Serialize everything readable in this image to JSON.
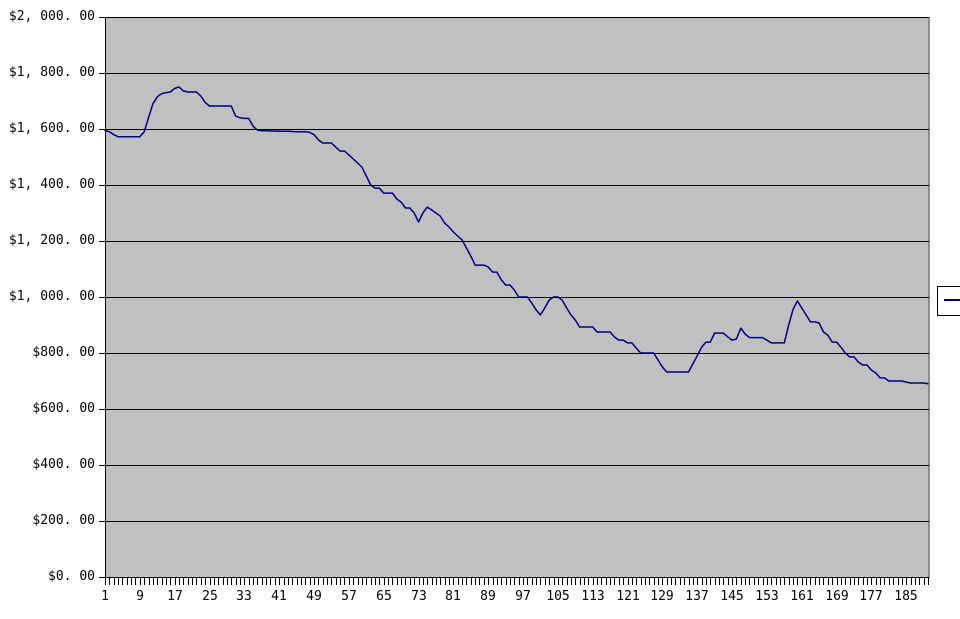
{
  "chart_data": {
    "type": "line",
    "title": "",
    "xlabel": "",
    "ylabel": "",
    "ylim": [
      0,
      2000
    ],
    "y_gridline_interval": 200,
    "y_tick_labels_top_to_bottom": [
      "$2, 000. 00",
      "$1, 800. 00",
      "$1, 600. 00",
      "$1, 400. 00",
      "$1, 200. 00",
      "$1, 000. 00",
      "$800. 00",
      "$600. 00",
      "$400. 00",
      "$200. 00",
      "$0. 00"
    ],
    "x_tick_labels": [
      1,
      9,
      17,
      25,
      33,
      41,
      49,
      57,
      65,
      73,
      81,
      89,
      97,
      105,
      113,
      121,
      129,
      137,
      145,
      153,
      161,
      169,
      177,
      185
    ],
    "n_points": 190,
    "grid": "horizontal",
    "legend_position": "right",
    "series": [
      {
        "name": "",
        "color": "#000080",
        "values": [
          1595,
          1590,
          1580,
          1572,
          1572,
          1572,
          1572,
          1572,
          1572,
          1590,
          1640,
          1690,
          1715,
          1726,
          1730,
          1732,
          1745,
          1750,
          1736,
          1732,
          1732,
          1732,
          1718,
          1695,
          1682,
          1682,
          1682,
          1682,
          1682,
          1682,
          1646,
          1640,
          1638,
          1638,
          1610,
          1596,
          1594,
          1594,
          1593,
          1593,
          1592,
          1592,
          1592,
          1591,
          1590,
          1590,
          1590,
          1588,
          1580,
          1561,
          1550,
          1550,
          1550,
          1535,
          1521,
          1521,
          1507,
          1493,
          1479,
          1464,
          1432,
          1400,
          1389,
          1389,
          1371,
          1371,
          1371,
          1350,
          1339,
          1318,
          1318,
          1300,
          1268,
          1300,
          1321,
          1311,
          1300,
          1289,
          1264,
          1250,
          1232,
          1218,
          1204,
          1175,
          1146,
          1114,
          1114,
          1114,
          1107,
          1089,
          1089,
          1061,
          1043,
          1043,
          1025,
          1000,
          1000,
          1000,
          979,
          954,
          936,
          961,
          989,
          1000,
          1000,
          989,
          961,
          936,
          918,
          893,
          893,
          893,
          893,
          875,
          875,
          875,
          875,
          857,
          846,
          846,
          836,
          836,
          818,
          800,
          800,
          800,
          800,
          775,
          750,
          732,
          732,
          732,
          732,
          732,
          732,
          761,
          790,
          820,
          839,
          839,
          871,
          871,
          871,
          858,
          846,
          850,
          889,
          868,
          855,
          855,
          855,
          855,
          846,
          836,
          836,
          836,
          836,
          900,
          955,
          986,
          961,
          936,
          911,
          911,
          907,
          875,
          864,
          839,
          839,
          821,
          800,
          786,
          786,
          768,
          757,
          757,
          739,
          729,
          711,
          711,
          700,
          700,
          700,
          700,
          696,
          693,
          693,
          693,
          693,
          690
        ]
      }
    ],
    "colors": {
      "plot_background": "#c0c0c0",
      "gridline": "#000000",
      "page_background": "#ffffff",
      "axis_text": "#000000",
      "series_line": "#000080"
    }
  }
}
